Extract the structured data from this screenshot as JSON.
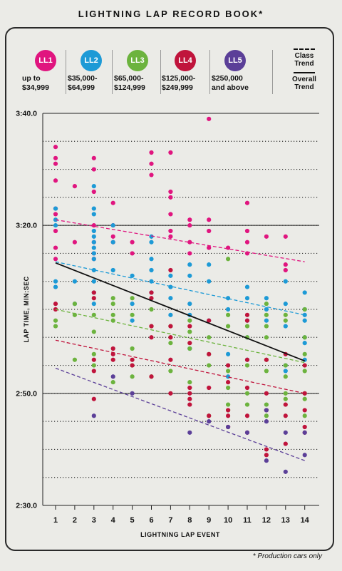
{
  "title": "LIGHTNING LAP RECORD BOOK*",
  "footnote": "* Production cars only",
  "legend": [
    {
      "code": "LL1",
      "range_line1": "up to",
      "range_line2": "$34,999",
      "color": "#e0157f"
    },
    {
      "code": "LL2",
      "range_line1": "$35,000-",
      "range_line2": "$64,999",
      "color": "#1d9ad6"
    },
    {
      "code": "LL3",
      "range_line1": "$65,000-",
      "range_line2": "$124,999",
      "color": "#6cb33e"
    },
    {
      "code": "LL4",
      "range_line1": "$125,000-",
      "range_line2": "$249,999",
      "color": "#c0143c"
    },
    {
      "code": "LL5",
      "range_line1": "$250,000",
      "range_line2": "and above",
      "color": "#5b3f98"
    }
  ],
  "trend_key": {
    "class_line1": "Class",
    "class_line2": "Trend",
    "overall_line1": "Overall",
    "overall_line2": "Trend"
  },
  "chart_data": {
    "type": "scatter",
    "xlabel": "LIGHTNING LAP EVENT",
    "ylabel": "LAP TIME, MIN:SEC",
    "x_categories": [
      1,
      2,
      3,
      4,
      5,
      6,
      7,
      8,
      9,
      10,
      11,
      12,
      13,
      14
    ],
    "ylim_seconds": [
      150,
      220
    ],
    "y_ticks": [
      {
        "value": 150,
        "label": "2:30.0"
      },
      {
        "value": 170,
        "label": "2:50.0"
      },
      {
        "value": 200,
        "label": "3:20.0"
      },
      {
        "value": 220,
        "label": "3:40.0"
      }
    ],
    "y_gridlines_seconds": [
      155,
      160,
      165,
      170,
      175,
      180,
      185,
      190,
      195,
      200,
      205,
      210,
      215
    ],
    "series": [
      {
        "name": "LL1",
        "color": "#e0157f",
        "points": [
          [
            1,
            214
          ],
          [
            1,
            212
          ],
          [
            1,
            211
          ],
          [
            1,
            208
          ],
          [
            1,
            203
          ],
          [
            1,
            202
          ],
          [
            1,
            199
          ],
          [
            1,
            196
          ],
          [
            1,
            194
          ],
          [
            2,
            207
          ],
          [
            2,
            197
          ],
          [
            3,
            212
          ],
          [
            3,
            210
          ],
          [
            3,
            206
          ],
          [
            3,
            200
          ],
          [
            3,
            197
          ],
          [
            3,
            195
          ],
          [
            3,
            194
          ],
          [
            4,
            204
          ],
          [
            4,
            200
          ],
          [
            4,
            198
          ],
          [
            4,
            197
          ],
          [
            5,
            197
          ],
          [
            5,
            195
          ],
          [
            6,
            213
          ],
          [
            6,
            211
          ],
          [
            6,
            209
          ],
          [
            7,
            213
          ],
          [
            7,
            206
          ],
          [
            7,
            205
          ],
          [
            7,
            202
          ],
          [
            7,
            199
          ],
          [
            7,
            198
          ],
          [
            8,
            201
          ],
          [
            8,
            200
          ],
          [
            8,
            197
          ],
          [
            8,
            195
          ],
          [
            9,
            219
          ],
          [
            9,
            201
          ],
          [
            9,
            199
          ],
          [
            9,
            196
          ],
          [
            10,
            196
          ],
          [
            11,
            204
          ],
          [
            11,
            199
          ],
          [
            11,
            197
          ],
          [
            11,
            195
          ],
          [
            12,
            198
          ],
          [
            13,
            198
          ],
          [
            13,
            192
          ],
          [
            13,
            193
          ]
        ]
      },
      {
        "name": "LL2",
        "color": "#1d9ad6",
        "points": [
          [
            1,
            203
          ],
          [
            1,
            201
          ],
          [
            1,
            200
          ],
          [
            1,
            190
          ],
          [
            1,
            189
          ],
          [
            2,
            190
          ],
          [
            2,
            186
          ],
          [
            3,
            207
          ],
          [
            3,
            203
          ],
          [
            3,
            202
          ],
          [
            3,
            199
          ],
          [
            3,
            198
          ],
          [
            3,
            197
          ],
          [
            3,
            196
          ],
          [
            3,
            195
          ],
          [
            3,
            194
          ],
          [
            3,
            192
          ],
          [
            3,
            190
          ],
          [
            3,
            188
          ],
          [
            3,
            186
          ],
          [
            4,
            200
          ],
          [
            4,
            197
          ],
          [
            4,
            192
          ],
          [
            5,
            191
          ],
          [
            5,
            186
          ],
          [
            5,
            183
          ],
          [
            6,
            198
          ],
          [
            6,
            197
          ],
          [
            6,
            194
          ],
          [
            6,
            192
          ],
          [
            6,
            190
          ],
          [
            6,
            188
          ],
          [
            7,
            191
          ],
          [
            7,
            189
          ],
          [
            7,
            187
          ],
          [
            7,
            184
          ],
          [
            8,
            193
          ],
          [
            8,
            191
          ],
          [
            8,
            186
          ],
          [
            8,
            184
          ],
          [
            8,
            178
          ],
          [
            9,
            193
          ],
          [
            9,
            190
          ],
          [
            9,
            183
          ],
          [
            10,
            187
          ],
          [
            10,
            185
          ],
          [
            10,
            177
          ],
          [
            10,
            173
          ],
          [
            11,
            189
          ],
          [
            11,
            187
          ],
          [
            11,
            183
          ],
          [
            11,
            180
          ],
          [
            11,
            176
          ],
          [
            12,
            187
          ],
          [
            12,
            185
          ],
          [
            12,
            183
          ],
          [
            13,
            190
          ],
          [
            13,
            186
          ],
          [
            13,
            182
          ],
          [
            13,
            175
          ],
          [
            13,
            174
          ],
          [
            14,
            188
          ],
          [
            14,
            185
          ],
          [
            14,
            184
          ],
          [
            14,
            183
          ],
          [
            14,
            180
          ],
          [
            14,
            179
          ],
          [
            14,
            176
          ]
        ]
      },
      {
        "name": "LL3",
        "color": "#6cb33e",
        "points": [
          [
            1,
            183
          ],
          [
            1,
            182
          ],
          [
            2,
            186
          ],
          [
            2,
            184
          ],
          [
            2,
            176
          ],
          [
            3,
            184
          ],
          [
            3,
            181
          ],
          [
            3,
            177
          ],
          [
            3,
            175
          ],
          [
            4,
            187
          ],
          [
            4,
            186
          ],
          [
            4,
            184
          ],
          [
            4,
            183
          ],
          [
            4,
            172
          ],
          [
            5,
            187
          ],
          [
            5,
            184
          ],
          [
            5,
            178
          ],
          [
            5,
            175
          ],
          [
            5,
            173
          ],
          [
            6,
            185
          ],
          [
            6,
            182
          ],
          [
            6,
            173
          ],
          [
            7,
            182
          ],
          [
            7,
            180
          ],
          [
            7,
            179
          ],
          [
            7,
            174
          ],
          [
            8,
            183
          ],
          [
            8,
            181
          ],
          [
            8,
            178
          ],
          [
            8,
            172
          ],
          [
            9,
            180
          ],
          [
            9,
            177
          ],
          [
            9,
            175
          ],
          [
            9,
            166
          ],
          [
            10,
            194
          ],
          [
            10,
            184
          ],
          [
            10,
            182
          ],
          [
            10,
            174
          ],
          [
            10,
            171
          ],
          [
            10,
            168
          ],
          [
            10,
            167
          ],
          [
            11,
            182
          ],
          [
            11,
            180
          ],
          [
            11,
            175
          ],
          [
            11,
            170
          ],
          [
            11,
            168
          ],
          [
            12,
            186
          ],
          [
            12,
            184
          ],
          [
            12,
            182
          ],
          [
            12,
            180
          ],
          [
            12,
            176
          ],
          [
            12,
            174
          ],
          [
            12,
            168
          ],
          [
            12,
            166
          ],
          [
            13,
            184
          ],
          [
            13,
            183
          ],
          [
            13,
            175
          ],
          [
            13,
            173
          ],
          [
            13,
            170
          ],
          [
            13,
            169
          ],
          [
            14,
            185
          ],
          [
            14,
            180
          ],
          [
            14,
            177
          ],
          [
            14,
            174
          ],
          [
            14,
            170
          ],
          [
            14,
            169
          ],
          [
            14,
            166
          ]
        ]
      },
      {
        "name": "LL4",
        "color": "#c0143c",
        "points": [
          [
            1,
            186
          ],
          [
            1,
            185
          ],
          [
            3,
            188
          ],
          [
            3,
            187
          ],
          [
            3,
            176
          ],
          [
            3,
            174
          ],
          [
            3,
            169
          ],
          [
            4,
            178
          ],
          [
            4,
            177
          ],
          [
            4,
            176
          ],
          [
            5,
            176
          ],
          [
            5,
            175
          ],
          [
            6,
            188
          ],
          [
            6,
            187
          ],
          [
            6,
            182
          ],
          [
            6,
            180
          ],
          [
            6,
            173
          ],
          [
            7,
            192
          ],
          [
            7,
            182
          ],
          [
            7,
            180
          ],
          [
            7,
            176
          ],
          [
            7,
            170
          ],
          [
            8,
            182
          ],
          [
            8,
            179
          ],
          [
            8,
            171
          ],
          [
            8,
            170
          ],
          [
            8,
            169
          ],
          [
            8,
            168
          ],
          [
            9,
            183
          ],
          [
            9,
            177
          ],
          [
            9,
            171
          ],
          [
            9,
            166
          ],
          [
            10,
            175
          ],
          [
            10,
            172
          ],
          [
            10,
            167
          ],
          [
            10,
            166
          ],
          [
            10,
            164
          ],
          [
            11,
            184
          ],
          [
            11,
            183
          ],
          [
            11,
            176
          ],
          [
            11,
            171
          ],
          [
            11,
            166
          ],
          [
            11,
            163
          ],
          [
            12,
            176
          ],
          [
            12,
            170
          ],
          [
            12,
            167
          ],
          [
            12,
            160
          ],
          [
            12,
            159
          ],
          [
            13,
            177
          ],
          [
            13,
            168
          ],
          [
            13,
            166
          ],
          [
            13,
            161
          ],
          [
            14,
            175
          ],
          [
            14,
            170
          ],
          [
            14,
            167
          ],
          [
            14,
            164
          ],
          [
            14,
            163
          ]
        ]
      },
      {
        "name": "LL5",
        "color": "#5b3f98",
        "points": [
          [
            3,
            166
          ],
          [
            4,
            173
          ],
          [
            5,
            170
          ],
          [
            8,
            163
          ],
          [
            9,
            165
          ],
          [
            10,
            164
          ],
          [
            11,
            163
          ],
          [
            12,
            167
          ],
          [
            12,
            165
          ],
          [
            12,
            158
          ],
          [
            13,
            163
          ],
          [
            13,
            156
          ],
          [
            14,
            163
          ],
          [
            14,
            159
          ]
        ]
      }
    ],
    "class_trends": [
      {
        "series": "LL1",
        "x1": 1,
        "y1": 201.0,
        "x2": 14,
        "y2": 193.5,
        "color": "#e0157f"
      },
      {
        "series": "LL2",
        "x1": 1,
        "y1": 193.5,
        "x2": 14,
        "y2": 184.0,
        "color": "#1d9ad6"
      },
      {
        "series": "LL3",
        "x1": 1,
        "y1": 185.0,
        "x2": 14,
        "y2": 175.5,
        "color": "#6cb33e"
      },
      {
        "series": "LL4",
        "x1": 1,
        "y1": 179.5,
        "x2": 14,
        "y2": 170.0,
        "color": "#c0143c"
      },
      {
        "series": "LL5",
        "x1": 1,
        "y1": 174.5,
        "x2": 14,
        "y2": 158.0,
        "color": "#5b3f98"
      }
    ],
    "overall_trend": {
      "x1": 1,
      "y1": 193.3,
      "x2": 14,
      "y2": 175.8,
      "color": "#111111"
    }
  }
}
